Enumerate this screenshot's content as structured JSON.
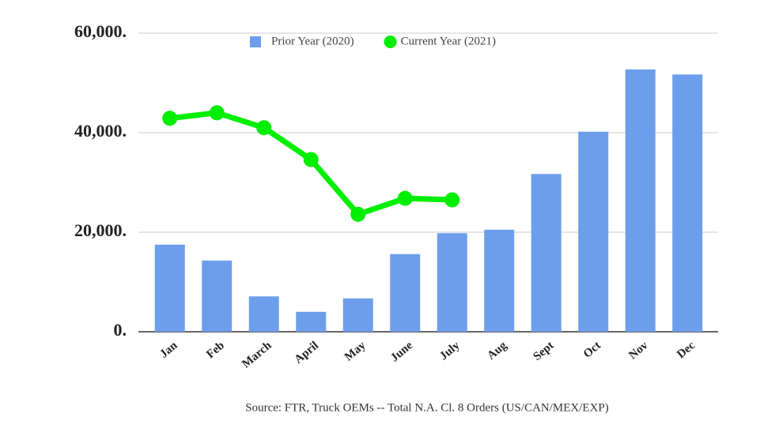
{
  "chart_data": {
    "type": "bar_line",
    "categories": [
      "Jan",
      "Feb",
      "March",
      "April",
      "May",
      "June",
      "July",
      "Aug",
      "Sept",
      "Oct",
      "Nov",
      "Dec"
    ],
    "series": [
      {
        "name": "Prior Year (2020)",
        "type": "bar",
        "color": "#6d9eeb",
        "values": [
          17500,
          14300,
          7100,
          4000,
          6700,
          15600,
          19800,
          20500,
          31700,
          40200,
          52700,
          51700
        ]
      },
      {
        "name": "Current Year (2021)",
        "type": "line",
        "color": "#00ee00",
        "values": [
          42900,
          44000,
          41000,
          34600,
          23600,
          26800,
          26500,
          null,
          null,
          null,
          null,
          null
        ]
      }
    ],
    "ylim": [
      0,
      60000
    ],
    "yticks": [
      {
        "value": 0,
        "label": "0."
      },
      {
        "value": 20000,
        "label": "20,000."
      },
      {
        "value": 40000,
        "label": "40,000."
      },
      {
        "value": 60000,
        "label": "60,000."
      }
    ],
    "grid": true,
    "legend": "top",
    "caption": "Source: FTR, Truck OEMs -- Total N.A. Cl. 8 Orders (US/CAN/MEX/EXP)"
  }
}
